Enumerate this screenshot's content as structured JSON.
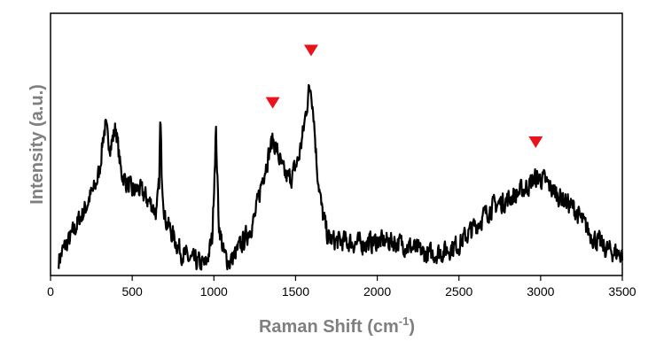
{
  "chart_data": {
    "type": "line",
    "title": "",
    "xlabel_base": "Raman Shift (cm",
    "xlabel_sup": "-1",
    "xlabel_close": ")",
    "ylabel": "Intensity (a.u.)",
    "xlim": [
      0,
      3500
    ],
    "x_ticks": [
      0,
      500,
      1000,
      1500,
      2000,
      2500,
      3000,
      3500
    ],
    "y_ticks": [],
    "ylim": [
      0,
      1
    ],
    "grid": false,
    "legend": "none",
    "line_color": "#000000",
    "marker_color": "#e8141c",
    "series": [
      {
        "shape_points": [
          [
            50,
            0.06
          ],
          [
            80,
            0.1
          ],
          [
            120,
            0.14
          ],
          [
            150,
            0.18
          ],
          [
            180,
            0.22
          ],
          [
            210,
            0.25
          ],
          [
            240,
            0.3
          ],
          [
            270,
            0.33
          ],
          [
            300,
            0.4
          ],
          [
            320,
            0.52
          ],
          [
            335,
            0.57
          ],
          [
            350,
            0.52
          ],
          [
            370,
            0.5
          ],
          [
            385,
            0.53
          ],
          [
            400,
            0.57
          ],
          [
            415,
            0.48
          ],
          [
            430,
            0.4
          ],
          [
            460,
            0.36
          ],
          [
            500,
            0.32
          ],
          [
            540,
            0.33
          ],
          [
            580,
            0.3
          ],
          [
            620,
            0.27
          ],
          [
            650,
            0.24
          ],
          [
            665,
            0.35
          ],
          [
            672,
            0.61
          ],
          [
            680,
            0.4
          ],
          [
            700,
            0.22
          ],
          [
            750,
            0.15
          ],
          [
            800,
            0.09
          ],
          [
            850,
            0.06
          ],
          [
            900,
            0.05
          ],
          [
            950,
            0.04
          ],
          [
            990,
            0.14
          ],
          [
            1012,
            0.56
          ],
          [
            1030,
            0.2
          ],
          [
            1060,
            0.08
          ],
          [
            1100,
            0.05
          ],
          [
            1150,
            0.1
          ],
          [
            1200,
            0.15
          ],
          [
            1250,
            0.22
          ],
          [
            1300,
            0.38
          ],
          [
            1335,
            0.46
          ],
          [
            1360,
            0.52
          ],
          [
            1390,
            0.47
          ],
          [
            1420,
            0.4
          ],
          [
            1450,
            0.37
          ],
          [
            1480,
            0.38
          ],
          [
            1520,
            0.45
          ],
          [
            1550,
            0.56
          ],
          [
            1580,
            0.7
          ],
          [
            1595,
            0.72
          ],
          [
            1610,
            0.62
          ],
          [
            1630,
            0.42
          ],
          [
            1660,
            0.25
          ],
          [
            1700,
            0.14
          ],
          [
            1750,
            0.13
          ],
          [
            1800,
            0.13
          ],
          [
            1900,
            0.12
          ],
          [
            2000,
            0.13
          ],
          [
            2100,
            0.13
          ],
          [
            2200,
            0.11
          ],
          [
            2300,
            0.08
          ],
          [
            2400,
            0.09
          ],
          [
            2500,
            0.12
          ],
          [
            2600,
            0.19
          ],
          [
            2700,
            0.26
          ],
          [
            2800,
            0.29
          ],
          [
            2900,
            0.33
          ],
          [
            2970,
            0.37
          ],
          [
            3010,
            0.37
          ],
          [
            3100,
            0.31
          ],
          [
            3200,
            0.26
          ],
          [
            3300,
            0.16
          ],
          [
            3400,
            0.1
          ],
          [
            3500,
            0.08
          ]
        ]
      }
    ],
    "peak_markers": [
      {
        "x": 1360,
        "y": 0.66
      },
      {
        "x": 1595,
        "y": 0.86
      },
      {
        "x": 2970,
        "y": 0.51
      }
    ]
  }
}
